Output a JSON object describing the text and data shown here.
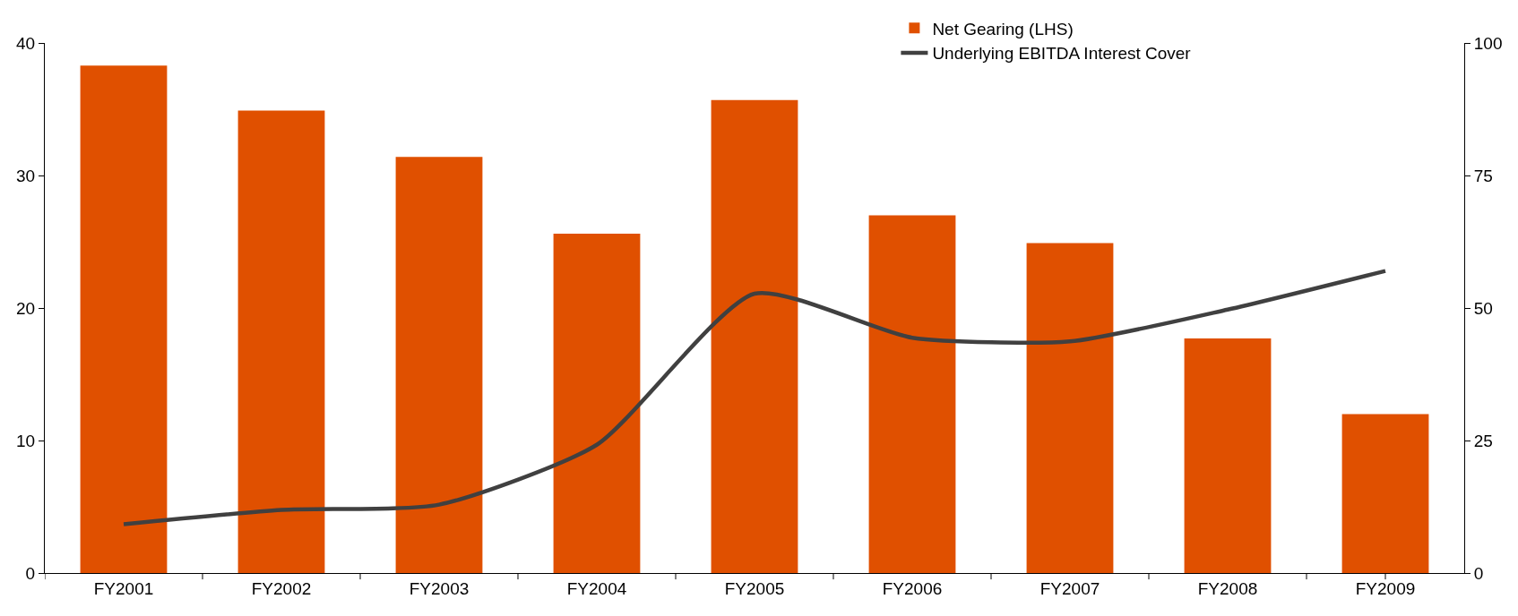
{
  "chart_data": {
    "type": "bar",
    "categories": [
      "FY2001",
      "FY2002",
      "FY2003",
      "FY2004",
      "FY2005",
      "FY2006",
      "FY2007",
      "FY2008",
      "FY2009"
    ],
    "series": [
      {
        "name": "Net Gearing (LHS)",
        "color": "#e05000",
        "values": [
          38.3,
          34.9,
          31.4,
          25.6,
          35.7,
          27.0,
          24.9,
          17.7,
          12.0
        ]
      },
      {
        "name": "Underlying EBITDA Interest Cover",
        "type": "line",
        "axis": "y2",
        "color": "#404040",
        "values": [
          9.2,
          11.9,
          12.9,
          24.2,
          52.7,
          44.4,
          43.7,
          49.7,
          57.0
        ]
      }
    ],
    "ylim": [
      0,
      40
    ],
    "yticks": [
      0,
      10,
      20,
      30,
      40
    ],
    "y2lim": [
      0,
      100
    ],
    "y2ticks": [
      0,
      25,
      50,
      75,
      100
    ],
    "grid": false,
    "legend": "top right",
    "marker": "none",
    "line_style": "solid"
  }
}
